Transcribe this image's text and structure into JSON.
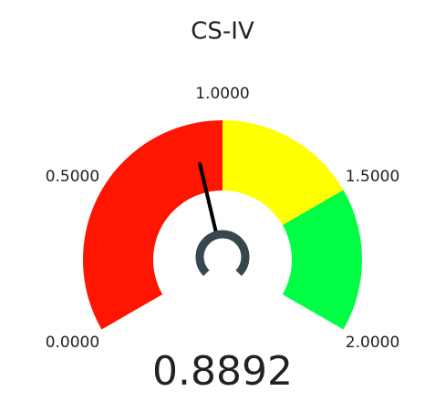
{
  "chart_data": {
    "type": "gauge",
    "title": "CS-IV",
    "value": 0.8892,
    "range": [
      0,
      2
    ],
    "ticks": [
      {
        "value": 0,
        "label": "0.0000"
      },
      {
        "value": 0.5,
        "label": "0.5000"
      },
      {
        "value": 1,
        "label": "1.0000"
      },
      {
        "value": 1.5,
        "label": "1.5000"
      },
      {
        "value": 2,
        "label": "2.0000"
      }
    ],
    "bands": [
      {
        "from": 0,
        "to": 1,
        "color": "#ff1500"
      },
      {
        "from": 1,
        "to": 1.5,
        "color": "#ffff00"
      },
      {
        "from": 1.5,
        "to": 2,
        "color": "#00ff44"
      }
    ],
    "needle_color": "#000000",
    "hub_color": "#37474f"
  }
}
